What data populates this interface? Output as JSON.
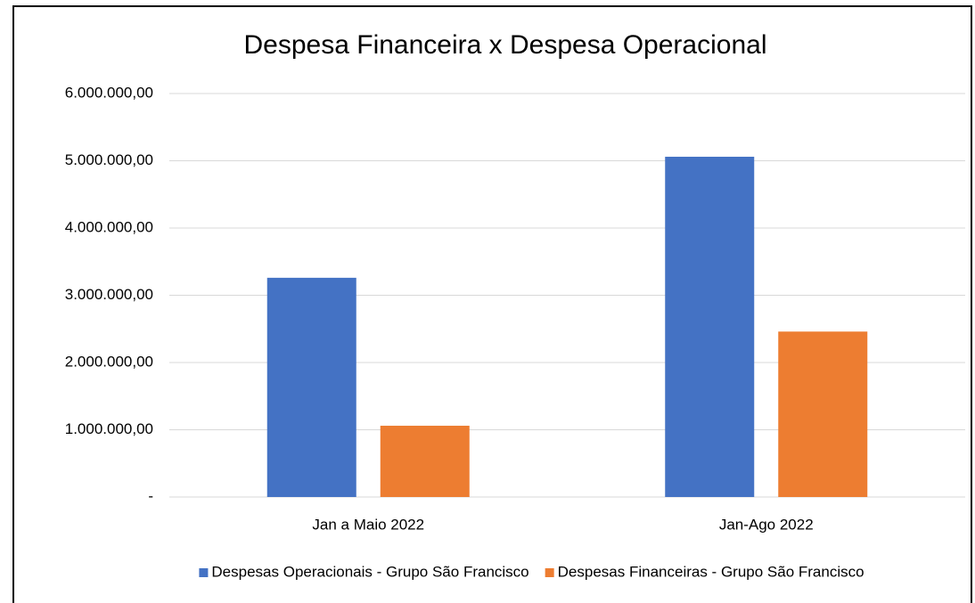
{
  "chart_data": {
    "type": "bar",
    "title": "Despesa Financeira x Despesa Operacional",
    "categories": [
      "Jan a Maio 2022",
      "Jan-Ago 2022"
    ],
    "series": [
      {
        "name": "Despesas Operacionais - Grupo São Francisco",
        "color": "#4472c4",
        "values": [
          3260000,
          5060000
        ]
      },
      {
        "name": "Despesas Financeiras - Grupo São Francisco",
        "color": "#ed7d31",
        "values": [
          1060000,
          2460000
        ]
      }
    ],
    "ylim": [
      0,
      6000000
    ],
    "yticks": [
      {
        "value": 0,
        "label": "-"
      },
      {
        "value": 1000000,
        "label": "1.000.000,00"
      },
      {
        "value": 2000000,
        "label": "2.000.000,00"
      },
      {
        "value": 3000000,
        "label": "3.000.000,00"
      },
      {
        "value": 4000000,
        "label": "4.000.000,00"
      },
      {
        "value": 5000000,
        "label": "5.000.000,00"
      },
      {
        "value": 6000000,
        "label": "6.000.000,00"
      }
    ],
    "grid": true,
    "legend": "bottom"
  }
}
